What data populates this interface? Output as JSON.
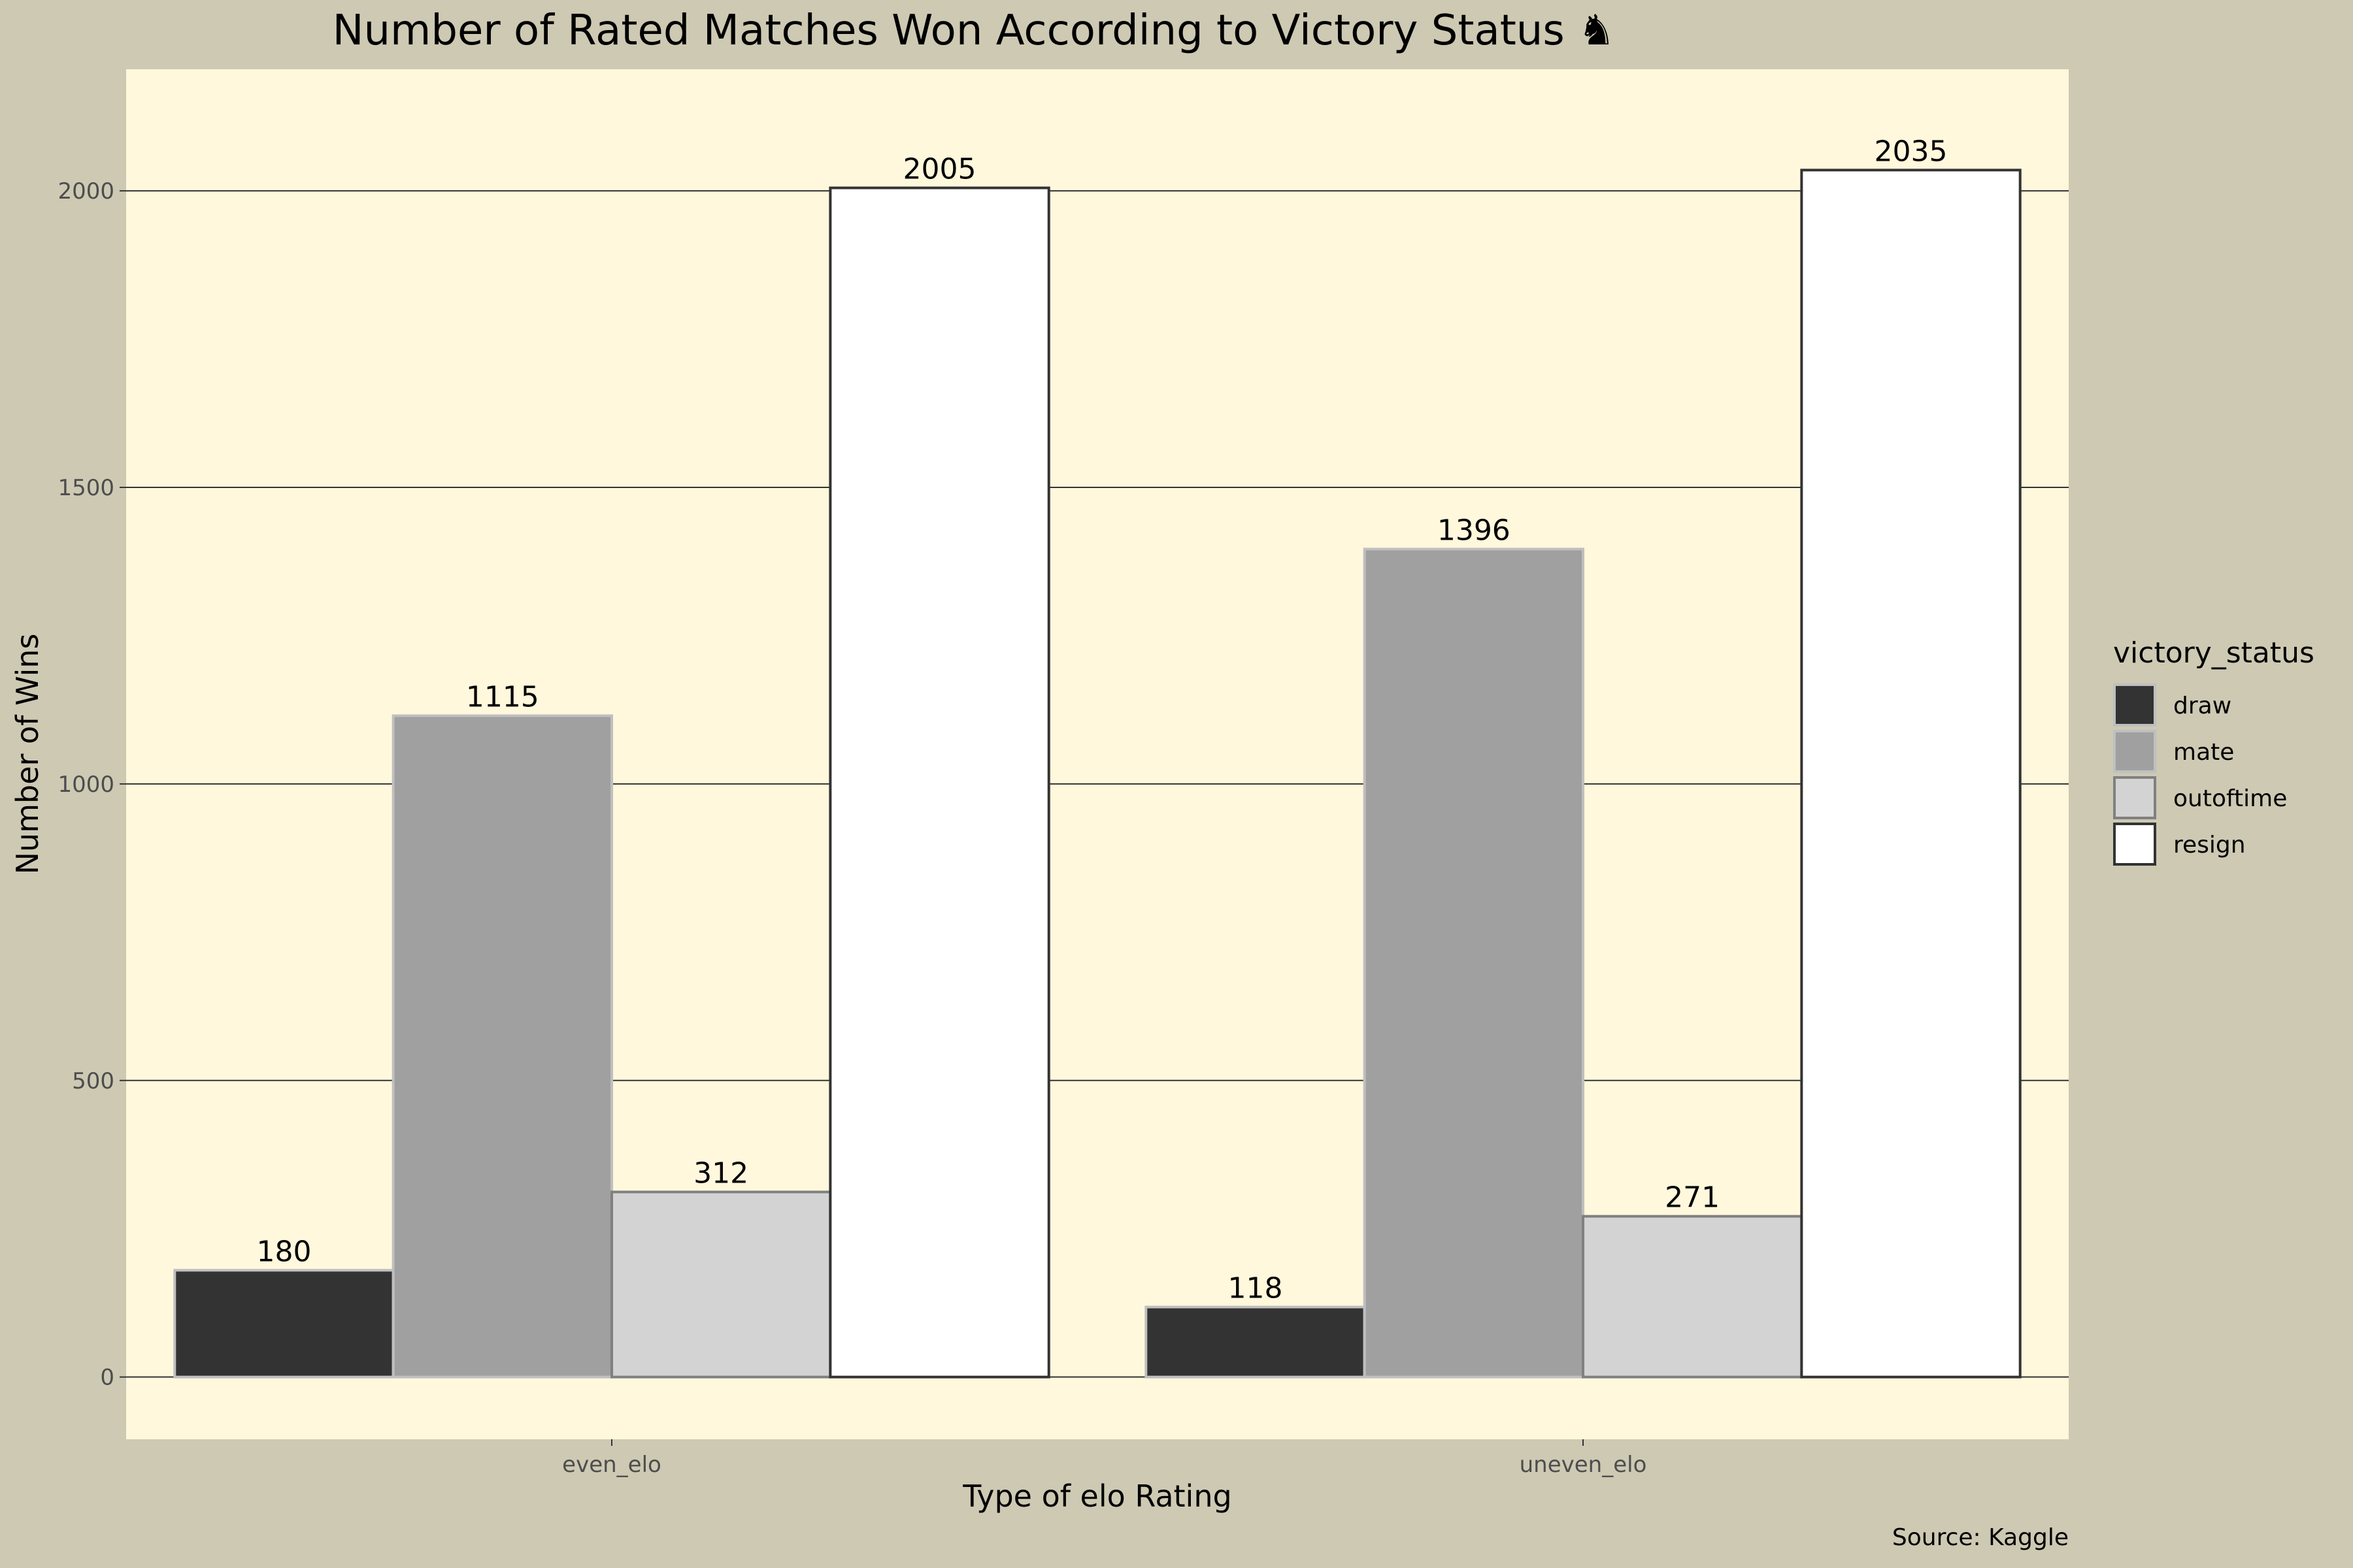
{
  "chart_data": {
    "type": "bar",
    "title": "Number of Rated Matches Won According to Victory Status ♞",
    "xlabel": "Type of elo Rating",
    "ylabel": "Number of Wins",
    "caption": "Source: Kaggle",
    "categories": [
      "even_elo",
      "uneven_elo"
    ],
    "series": [
      {
        "name": "draw",
        "values": [
          180,
          118
        ],
        "fill": "#333333",
        "stroke": "#BFBFBF"
      },
      {
        "name": "mate",
        "values": [
          1115,
          1396
        ],
        "fill": "#A0A0A0",
        "stroke": "#BFBFBF"
      },
      {
        "name": "outoftime",
        "values": [
          312,
          271
        ],
        "fill": "#D3D3D3",
        "stroke": "#808080"
      },
      {
        "name": "resign",
        "values": [
          2005,
          2035
        ],
        "fill": "#FFFFFF",
        "stroke": "#333333"
      }
    ],
    "ylim": [
      -105,
      2205
    ],
    "y_ticks": [
      0,
      500,
      1000,
      1500,
      2000
    ],
    "grid": true,
    "legend": {
      "title": "victory_status",
      "position": "right"
    },
    "colors": {
      "plot_background": "#FFF8DC",
      "page_background": "#CDC9B3",
      "gridline": "#333333"
    }
  }
}
